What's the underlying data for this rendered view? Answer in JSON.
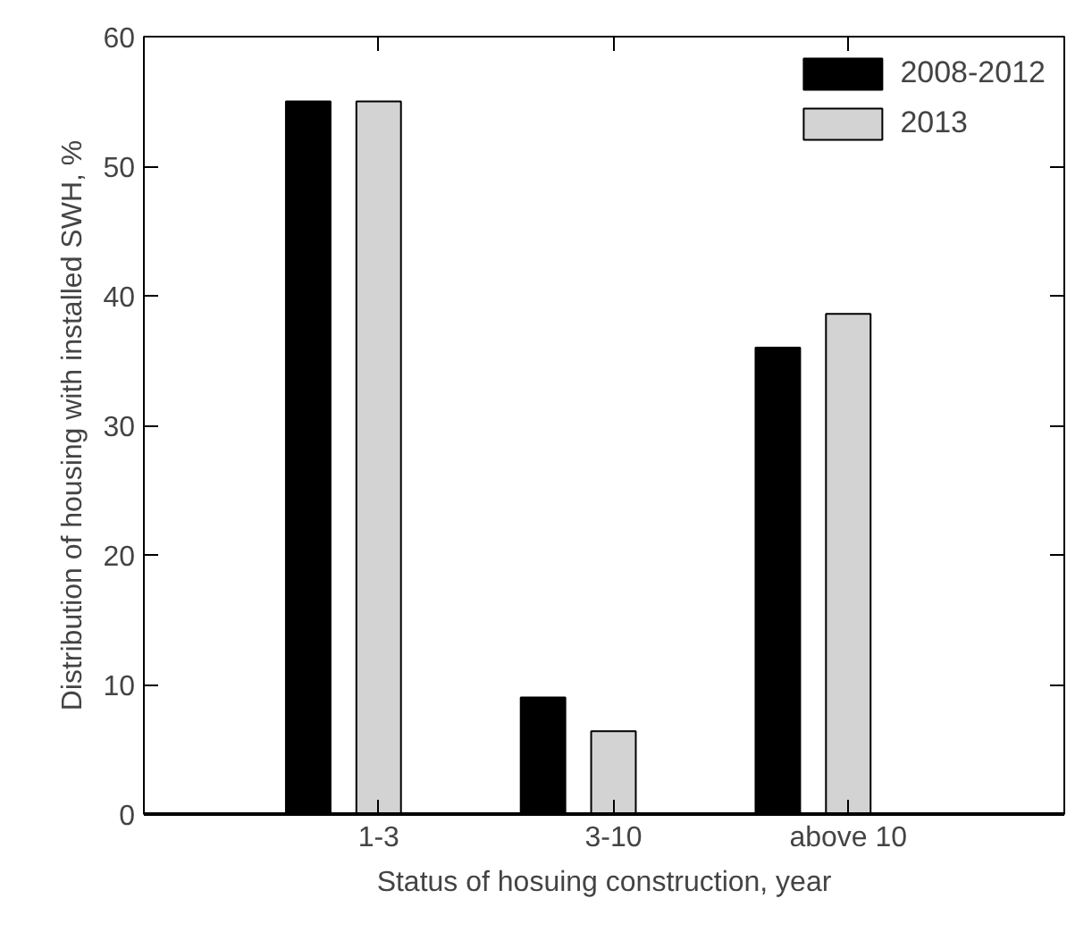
{
  "chart_data": {
    "type": "bar",
    "xlabel": "Status of hosuing construction, year",
    "ylabel": "Distribution of housing with installed SWH, %",
    "categories": [
      "1-3",
      "3-10",
      "above 10"
    ],
    "series": [
      {
        "name": "2008-2012",
        "color": "#000000",
        "values": [
          55,
          9,
          36
        ]
      },
      {
        "name": "2013",
        "color": "#d3d3d3",
        "values": [
          55,
          6.4,
          38.6
        ]
      }
    ],
    "ylim": [
      0,
      60
    ],
    "yticks": [
      0,
      10,
      20,
      30,
      40,
      50,
      60
    ],
    "grid": false,
    "legend": "top right"
  }
}
